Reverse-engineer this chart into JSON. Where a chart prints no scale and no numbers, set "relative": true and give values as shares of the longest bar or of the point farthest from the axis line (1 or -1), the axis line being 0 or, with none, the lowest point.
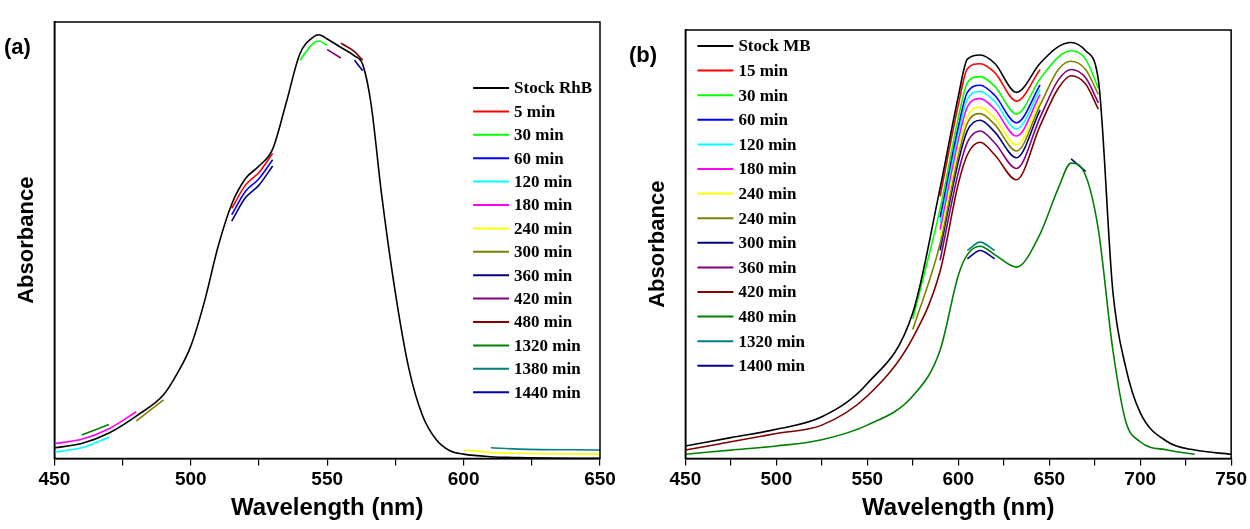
{
  "chart_data": [
    {
      "type": "line",
      "title": "(a)",
      "xlabel": "Wavelength (nm)",
      "ylabel": "Absorbance",
      "relative": true,
      "legend": "top right",
      "xlim": [
        450,
        650
      ],
      "xticks": [
        450,
        {
          "value": 475,
          "label": null
        },
        500,
        {
          "value": 525,
          "label": null
        },
        550,
        {
          "value": 575,
          "label": null
        },
        600,
        {
          "value": 625,
          "label": null
        },
        650
      ],
      "x": [
        450,
        460,
        470,
        480,
        490,
        495,
        500,
        505,
        510,
        515,
        520,
        525,
        530,
        535,
        540,
        545,
        547,
        550,
        555,
        560,
        563,
        566,
        570,
        575,
        580,
        585,
        590,
        595,
        600,
        610,
        620,
        650
      ],
      "series": [
        {
          "name": "Stock RhB",
          "color": "#000000",
          "values": [
            0.025,
            0.035,
            0.06,
            0.1,
            0.15,
            0.2,
            0.265,
            0.37,
            0.5,
            0.6,
            0.66,
            0.69,
            0.73,
            0.84,
            0.955,
            0.995,
            1.0,
            0.99,
            0.97,
            0.95,
            0.93,
            0.84,
            0.62,
            0.39,
            0.21,
            0.1,
            0.044,
            0.018,
            0.01,
            0.004,
            0.002,
            0
          ]
        },
        {
          "name": "5 min",
          "color": "#ff0000",
          "values": [
            null,
            null,
            null,
            null,
            null,
            null,
            null,
            null,
            null,
            0.59,
            0.645,
            0.675,
            0.72,
            null,
            null,
            null,
            null,
            null,
            null,
            null,
            null,
            null,
            null,
            null,
            null,
            null,
            null,
            null,
            null,
            null,
            null,
            null
          ]
        },
        {
          "name": "30 min",
          "color": "#00ff00",
          "values": [
            null,
            null,
            null,
            null,
            null,
            null,
            null,
            null,
            null,
            null,
            null,
            null,
            null,
            null,
            0.94,
            0.98,
            0.985,
            0.975,
            null,
            null,
            null,
            null,
            null,
            null,
            null,
            null,
            null,
            null,
            null,
            null,
            null,
            null
          ]
        },
        {
          "name": "60 min",
          "color": "#0000ff",
          "values": [
            null,
            null,
            null,
            null,
            null,
            null,
            null,
            null,
            null,
            0.575,
            0.63,
            0.66,
            0.705,
            null,
            null,
            null,
            null,
            null,
            null,
            null,
            null,
            null,
            null,
            null,
            null,
            null,
            null,
            null,
            null,
            null,
            null,
            null
          ]
        },
        {
          "name": "120 min",
          "color": "#00ffff",
          "values": [
            0.015,
            0.025,
            0.05,
            null,
            null,
            null,
            null,
            null,
            null,
            null,
            null,
            null,
            null,
            null,
            null,
            null,
            null,
            null,
            null,
            null,
            null,
            null,
            null,
            null,
            null,
            null,
            null,
            null,
            null,
            null,
            null,
            null
          ]
        },
        {
          "name": "180 min",
          "color": "#ff00ff",
          "values": [
            0.035,
            0.045,
            0.07,
            0.11,
            null,
            null,
            null,
            null,
            null,
            null,
            null,
            null,
            null,
            null,
            null,
            null,
            null,
            null,
            null,
            null,
            null,
            null,
            null,
            null,
            null,
            null,
            null,
            null,
            null,
            null,
            null,
            null
          ]
        },
        {
          "name": "240 min",
          "color": "#ffff00",
          "values": [
            null,
            null,
            null,
            null,
            null,
            null,
            null,
            null,
            null,
            null,
            null,
            null,
            null,
            null,
            null,
            null,
            null,
            null,
            null,
            null,
            null,
            null,
            null,
            null,
            null,
            null,
            null,
            null,
            0.02,
            0.014,
            0.012,
            0.01
          ]
        },
        {
          "name": "300 min",
          "color": "#808000",
          "values": [
            null,
            null,
            null,
            0.088,
            0.138,
            null,
            null,
            null,
            null,
            null,
            null,
            null,
            null,
            null,
            null,
            null,
            null,
            null,
            null,
            null,
            null,
            null,
            null,
            null,
            null,
            null,
            null,
            null,
            null,
            null,
            null,
            null
          ]
        },
        {
          "name": "360 min",
          "color": "#000080",
          "values": [
            null,
            null,
            null,
            null,
            null,
            null,
            null,
            null,
            null,
            0.56,
            0.615,
            0.645,
            0.69,
            null,
            null,
            null,
            null,
            null,
            null,
            null,
            null,
            null,
            null,
            null,
            null,
            null,
            null,
            null,
            null,
            null,
            null,
            null
          ]
        },
        {
          "name": "420 min",
          "color": "#800080",
          "values": [
            null,
            null,
            null,
            null,
            null,
            null,
            null,
            null,
            null,
            null,
            null,
            null,
            null,
            null,
            null,
            null,
            null,
            0.965,
            0.945,
            null,
            null,
            null,
            null,
            null,
            null,
            null,
            null,
            null,
            null,
            null,
            null,
            null
          ]
        },
        {
          "name": "480 min",
          "color": "#800000",
          "values": [
            null,
            null,
            null,
            null,
            null,
            null,
            null,
            null,
            null,
            null,
            null,
            null,
            null,
            null,
            null,
            null,
            null,
            null,
            0.98,
            0.96,
            0.94,
            null,
            null,
            null,
            null,
            null,
            null,
            null,
            null,
            null,
            null,
            null
          ]
        },
        {
          "name": "1320 min",
          "color": "#008000",
          "values": [
            null,
            0.055,
            0.08,
            null,
            null,
            null,
            null,
            null,
            null,
            null,
            null,
            null,
            null,
            null,
            null,
            null,
            null,
            null,
            null,
            null,
            null,
            null,
            null,
            null,
            null,
            null,
            null,
            null,
            null,
            null,
            null,
            null
          ]
        },
        {
          "name": "1380 min",
          "color": "#008080",
          "values": [
            null,
            null,
            null,
            null,
            null,
            null,
            null,
            null,
            null,
            null,
            null,
            null,
            null,
            null,
            null,
            null,
            null,
            null,
            null,
            null,
            null,
            null,
            null,
            null,
            null,
            null,
            null,
            null,
            null,
            0.025,
            0.022,
            0.02
          ]
        },
        {
          "name": "1440 min",
          "color": "#0000a0",
          "values": [
            null,
            null,
            null,
            null,
            null,
            null,
            null,
            null,
            null,
            null,
            null,
            null,
            null,
            null,
            null,
            null,
            null,
            null,
            null,
            0.94,
            0.915,
            null,
            null,
            null,
            null,
            null,
            null,
            null,
            null,
            null,
            null,
            null
          ]
        }
      ]
    },
    {
      "type": "line",
      "title": "(b)",
      "xlabel": "Wavelength (nm)",
      "ylabel": "Absorbance",
      "relative": true,
      "legend": "top left",
      "xlim": [
        450,
        750
      ],
      "xticks": [
        450,
        {
          "value": 475,
          "label": null
        },
        500,
        {
          "value": 525,
          "label": null
        },
        550,
        {
          "value": 575,
          "label": null
        },
        600,
        {
          "value": 625,
          "label": null
        },
        650,
        {
          "value": 675,
          "label": null
        },
        700,
        {
          "value": 725,
          "label": null
        },
        750
      ],
      "x": [
        450,
        475,
        500,
        525,
        550,
        575,
        590,
        600,
        605,
        612,
        620,
        632,
        645,
        655,
        662,
        670,
        677,
        685,
        692,
        700,
        715,
        730,
        750
      ],
      "series": [
        {
          "name": "Stock MB",
          "color": "#000000",
          "values": [
            0.03,
            0.05,
            0.07,
            0.1,
            0.18,
            0.35,
            0.65,
            0.87,
            0.96,
            0.97,
            0.95,
            0.88,
            0.95,
            0.99,
            1.0,
            0.98,
            0.91,
            0.4,
            0.22,
            0.11,
            0.04,
            0.02,
            0.01
          ]
        },
        {
          "name": "15 min",
          "color": "#ff0000",
          "values": [
            null,
            null,
            null,
            null,
            null,
            null,
            0.63,
            0.849,
            0.937,
            0.949,
            0.928,
            0.859,
            0.935,
            null,
            null,
            null,
            null,
            null,
            null,
            null,
            null,
            null,
            null
          ]
        },
        {
          "name": "30 min",
          "color": "#00ff00",
          "values": [
            null,
            null,
            null,
            null,
            null,
            0.335,
            0.6,
            0.818,
            0.903,
            0.918,
            0.895,
            0.828,
            0.913,
            0.965,
            0.98,
            0.96,
            0.89,
            null,
            null,
            null,
            null,
            null,
            null
          ]
        },
        {
          "name": "60 min",
          "color": "#0000ff",
          "values": [
            null,
            null,
            null,
            null,
            null,
            null,
            0.58,
            0.797,
            0.88,
            0.897,
            0.873,
            0.807,
            0.898,
            null,
            null,
            null,
            null,
            null,
            null,
            null,
            null,
            null,
            null
          ]
        },
        {
          "name": "120 min",
          "color": "#00ffff",
          "values": [
            null,
            null,
            null,
            null,
            null,
            null,
            0.566,
            0.782,
            0.863,
            0.882,
            0.858,
            0.792,
            0.887,
            null,
            null,
            null,
            null,
            null,
            null,
            null,
            null,
            null,
            null
          ]
        },
        {
          "name": "180 min",
          "color": "#ff00ff",
          "values": [
            null,
            null,
            null,
            null,
            null,
            null,
            0.55,
            0.765,
            0.845,
            0.865,
            0.84,
            0.775,
            0.875,
            null,
            null,
            null,
            null,
            null,
            null,
            null,
            null,
            null,
            null
          ]
        },
        {
          "name": "240 min",
          "color": "#ffff00",
          "values": [
            null,
            null,
            null,
            null,
            null,
            null,
            0.53,
            0.744,
            0.822,
            0.844,
            0.818,
            0.754,
            0.86,
            null,
            null,
            null,
            null,
            null,
            null,
            null,
            null,
            null,
            null
          ]
        },
        {
          "name": "240 min",
          "color": "#808000",
          "values": [
            null,
            null,
            null,
            null,
            null,
            0.31,
            0.516,
            0.729,
            0.806,
            0.829,
            0.803,
            0.739,
            0.85,
            0.935,
            0.955,
            0.935,
            0.875,
            null,
            null,
            null,
            null,
            null,
            null
          ]
        },
        {
          "name": "300 min",
          "color": "#000080",
          "values": [
            null,
            null,
            null,
            null,
            null,
            null,
            0.5,
            0.713,
            0.788,
            0.813,
            0.785,
            0.723,
            0.838,
            null,
            null,
            null,
            null,
            null,
            null,
            null,
            null,
            null,
            null
          ]
        },
        {
          "name": "360 min",
          "color": "#800080",
          "values": [
            null,
            null,
            null,
            null,
            null,
            null,
            0.476,
            0.687,
            0.76,
            0.787,
            0.759,
            0.697,
            0.82,
            0.91,
            0.935,
            0.915,
            0.855,
            null,
            null,
            null,
            null,
            null,
            null
          ]
        },
        {
          "name": "420 min",
          "color": "#800000",
          "values": [
            0.02,
            0.04,
            0.06,
            0.08,
            0.15,
            0.29,
            0.45,
            0.66,
            0.73,
            0.76,
            0.73,
            0.67,
            0.8,
            0.89,
            0.92,
            0.9,
            0.84,
            null,
            null,
            null,
            null,
            null,
            null
          ]
        },
        {
          "name": "480 min",
          "color": "#008000",
          "values": [
            0.01,
            0.02,
            0.03,
            0.045,
            0.08,
            0.15,
            0.26,
            0.44,
            0.49,
            0.51,
            0.49,
            0.46,
            0.54,
            0.65,
            0.71,
            0.68,
            0.55,
            0.26,
            0.09,
            0.04,
            0.02,
            0.01,
            null
          ]
        },
        {
          "name": "1320 min",
          "color": "#008080",
          "values": [
            null,
            null,
            null,
            null,
            null,
            null,
            null,
            null,
            0.5,
            0.52,
            0.5,
            null,
            null,
            null,
            null,
            null,
            null,
            null,
            null,
            null,
            null,
            null,
            null
          ]
        },
        {
          "name": "1400 min",
          "color": "#00008b",
          "values": [
            null,
            null,
            null,
            null,
            null,
            null,
            null,
            null,
            0.48,
            0.5,
            0.48,
            null,
            null,
            null,
            0.72,
            0.69,
            null,
            null,
            null,
            null,
            null,
            null,
            null
          ]
        }
      ]
    }
  ]
}
